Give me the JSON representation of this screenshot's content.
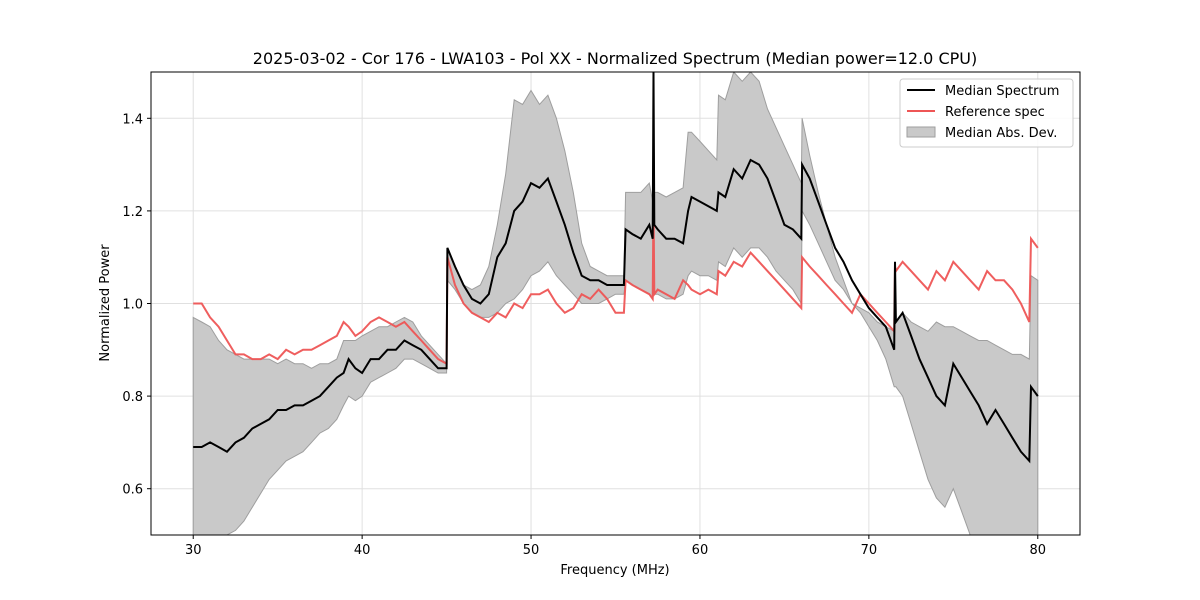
{
  "chart_data": {
    "type": "line",
    "title": "2025-03-02 - Cor 176 - LWA103 - Pol XX - Normalized Spectrum (Median power=12.0 CPU)",
    "xlabel": "Frequency (MHz)",
    "ylabel": "Normalized Power",
    "xlim": [
      27.5,
      82.5
    ],
    "ylim": [
      0.5,
      1.5
    ],
    "xticks": [
      30,
      40,
      50,
      60,
      70,
      80
    ],
    "yticks": [
      0.6,
      0.8,
      1.0,
      1.2,
      1.4
    ],
    "xtick_labels": [
      "30",
      "40",
      "50",
      "60",
      "70",
      "80"
    ],
    "ytick_labels": [
      "0.6",
      "0.8",
      "1.0",
      "1.2",
      "1.4"
    ],
    "grid": true,
    "legend_position": "top-right",
    "legend": [
      "Median Spectrum",
      "Reference spec",
      "Median Abs. Dev."
    ],
    "colors": {
      "median": "#000000",
      "reference": "#ee5555",
      "band_fill": "#c9c9c9",
      "band_edge": "#9e9e9e",
      "grid": "#e0e0e0"
    },
    "series": [
      {
        "name": "Median Spectrum",
        "x": [
          30,
          30.5,
          31,
          31.5,
          32,
          32.5,
          33,
          33.5,
          34,
          34.5,
          35,
          35.5,
          36,
          36.5,
          37,
          37.5,
          38,
          38.5,
          38.9,
          39.2,
          39.6,
          40,
          40.5,
          41,
          41.5,
          42,
          42.5,
          43,
          43.5,
          44,
          44.5,
          45,
          45.05,
          45.5,
          46,
          46.5,
          47,
          47.5,
          48,
          48.5,
          49,
          49.5,
          50,
          50.5,
          51,
          51.5,
          52,
          52.5,
          53,
          53.5,
          54,
          54.5,
          55,
          55.5,
          55.6,
          56,
          56.5,
          57,
          57.2,
          57.25,
          57.3,
          57.5,
          58,
          58.5,
          59,
          59.3,
          59.5,
          60,
          60.5,
          61,
          61.1,
          61.5,
          62,
          62.5,
          63,
          63.5,
          64,
          64.5,
          65,
          65.5,
          66,
          66.05,
          66.5,
          67,
          67.5,
          68,
          68.5,
          69,
          69.5,
          70,
          70.5,
          71,
          71.5,
          71.55,
          71.6,
          72,
          72.5,
          73,
          73.5,
          74,
          74.5,
          75,
          75.5,
          76,
          76.5,
          77,
          77.5,
          78,
          78.5,
          79,
          79.5,
          79.6,
          80
        ],
        "y": [
          0.69,
          0.69,
          0.7,
          0.69,
          0.68,
          0.7,
          0.71,
          0.73,
          0.74,
          0.75,
          0.77,
          0.77,
          0.78,
          0.78,
          0.79,
          0.8,
          0.82,
          0.84,
          0.85,
          0.88,
          0.86,
          0.85,
          0.88,
          0.88,
          0.9,
          0.9,
          0.92,
          0.91,
          0.9,
          0.88,
          0.86,
          0.86,
          1.12,
          1.08,
          1.04,
          1.01,
          1.0,
          1.02,
          1.1,
          1.13,
          1.2,
          1.22,
          1.26,
          1.25,
          1.27,
          1.22,
          1.17,
          1.11,
          1.06,
          1.05,
          1.05,
          1.04,
          1.04,
          1.04,
          1.16,
          1.15,
          1.14,
          1.17,
          1.14,
          1.5,
          1.17,
          1.16,
          1.14,
          1.14,
          1.13,
          1.2,
          1.23,
          1.22,
          1.21,
          1.2,
          1.24,
          1.23,
          1.29,
          1.27,
          1.31,
          1.3,
          1.27,
          1.22,
          1.17,
          1.16,
          1.14,
          1.3,
          1.27,
          1.22,
          1.17,
          1.12,
          1.09,
          1.05,
          1.02,
          0.99,
          0.97,
          0.95,
          0.9,
          1.09,
          0.96,
          0.98,
          0.93,
          0.88,
          0.84,
          0.8,
          0.78,
          0.87,
          0.84,
          0.81,
          0.78,
          0.74,
          0.77,
          0.74,
          0.71,
          0.68,
          0.66,
          0.82,
          0.8
        ]
      },
      {
        "name": "Reference spec",
        "x": [
          30,
          30.5,
          31,
          31.5,
          32,
          32.5,
          33,
          33.5,
          34,
          34.5,
          35,
          35.5,
          36,
          36.5,
          37,
          37.5,
          38,
          38.5,
          38.9,
          39.2,
          39.6,
          40,
          40.5,
          41,
          41.5,
          42,
          42.5,
          43,
          43.5,
          44,
          44.5,
          45,
          45.05,
          45.5,
          46,
          46.5,
          47,
          47.5,
          48,
          48.5,
          49,
          49.5,
          50,
          50.5,
          51,
          51.5,
          52,
          52.5,
          53,
          53.5,
          54,
          54.5,
          55,
          55.5,
          55.6,
          56,
          56.5,
          57,
          57.2,
          57.25,
          57.3,
          57.5,
          58,
          58.5,
          59,
          59.3,
          59.5,
          60,
          60.5,
          61,
          61.1,
          61.5,
          62,
          62.5,
          63,
          63.5,
          64,
          64.5,
          65,
          65.5,
          66,
          66.05,
          66.5,
          67,
          67.5,
          68,
          68.5,
          69,
          69.5,
          70,
          70.5,
          71,
          71.5,
          71.55,
          71.6,
          72,
          72.5,
          73,
          73.5,
          74,
          74.5,
          75,
          75.5,
          76,
          76.5,
          77,
          77.5,
          78,
          78.5,
          79,
          79.5,
          79.6,
          80
        ],
        "y": [
          1.0,
          1.0,
          0.97,
          0.95,
          0.92,
          0.89,
          0.89,
          0.88,
          0.88,
          0.89,
          0.88,
          0.9,
          0.89,
          0.9,
          0.9,
          0.91,
          0.92,
          0.93,
          0.96,
          0.95,
          0.93,
          0.94,
          0.96,
          0.97,
          0.96,
          0.95,
          0.96,
          0.94,
          0.92,
          0.9,
          0.88,
          0.87,
          1.1,
          1.04,
          1.0,
          0.98,
          0.97,
          0.96,
          0.98,
          0.97,
          1.0,
          0.99,
          1.02,
          1.02,
          1.03,
          1.0,
          0.98,
          0.99,
          1.02,
          1.01,
          1.03,
          1.01,
          0.98,
          0.98,
          1.05,
          1.04,
          1.03,
          1.02,
          1.01,
          1.22,
          1.02,
          1.03,
          1.02,
          1.01,
          1.05,
          1.04,
          1.03,
          1.02,
          1.03,
          1.02,
          1.07,
          1.06,
          1.09,
          1.08,
          1.11,
          1.09,
          1.07,
          1.05,
          1.03,
          1.01,
          0.99,
          1.1,
          1.08,
          1.06,
          1.04,
          1.02,
          1.0,
          0.98,
          1.02,
          1.0,
          0.98,
          0.96,
          0.94,
          1.08,
          1.07,
          1.09,
          1.07,
          1.05,
          1.03,
          1.07,
          1.05,
          1.09,
          1.07,
          1.05,
          1.03,
          1.07,
          1.05,
          1.05,
          1.03,
          1.0,
          0.96,
          1.14,
          1.12
        ]
      }
    ],
    "band": {
      "name": "Median Abs. Dev.",
      "x": [
        30,
        30.5,
        31,
        31.5,
        32,
        32.5,
        33,
        33.5,
        34,
        34.5,
        35,
        35.5,
        36,
        36.5,
        37,
        37.5,
        38,
        38.5,
        38.9,
        39.2,
        39.6,
        40,
        40.5,
        41,
        41.5,
        42,
        42.5,
        43,
        43.5,
        44,
        44.5,
        45,
        45.05,
        45.5,
        46,
        46.5,
        47,
        47.5,
        48,
        48.5,
        49,
        49.5,
        50,
        50.5,
        51,
        51.5,
        52,
        52.5,
        53,
        53.5,
        54,
        54.5,
        55,
        55.5,
        55.6,
        56,
        56.5,
        57,
        57.2,
        57.25,
        57.3,
        57.5,
        58,
        58.5,
        59,
        59.3,
        59.5,
        60,
        60.5,
        61,
        61.1,
        61.5,
        62,
        62.5,
        63,
        63.5,
        64,
        64.5,
        65,
        65.5,
        66,
        66.05,
        66.5,
        67,
        67.5,
        68,
        68.5,
        69,
        69.5,
        70,
        70.5,
        71,
        71.5,
        71.55,
        71.6,
        72,
        72.5,
        73,
        73.5,
        74,
        74.5,
        75,
        75.5,
        76,
        76.5,
        77,
        77.5,
        78,
        78.5,
        79,
        79.5,
        79.6,
        80
      ],
      "upper": [
        0.97,
        0.96,
        0.95,
        0.92,
        0.9,
        0.89,
        0.88,
        0.88,
        0.88,
        0.88,
        0.87,
        0.88,
        0.87,
        0.87,
        0.86,
        0.87,
        0.87,
        0.88,
        0.92,
        0.92,
        0.92,
        0.93,
        0.94,
        0.95,
        0.95,
        0.96,
        0.97,
        0.96,
        0.93,
        0.91,
        0.89,
        0.87,
        1.12,
        1.08,
        1.04,
        1.03,
        1.04,
        1.08,
        1.17,
        1.28,
        1.44,
        1.43,
        1.46,
        1.43,
        1.45,
        1.4,
        1.33,
        1.24,
        1.13,
        1.08,
        1.07,
        1.06,
        1.06,
        1.06,
        1.24,
        1.24,
        1.24,
        1.26,
        1.22,
        1.5,
        1.24,
        1.24,
        1.23,
        1.24,
        1.25,
        1.37,
        1.37,
        1.35,
        1.33,
        1.31,
        1.45,
        1.44,
        1.5,
        1.48,
        1.5,
        1.48,
        1.42,
        1.38,
        1.34,
        1.3,
        1.26,
        1.4,
        1.32,
        1.24,
        1.17,
        1.1,
        1.05,
        1.0,
        0.99,
        0.98,
        0.96,
        0.95,
        0.94,
        0.96,
        0.96,
        0.98,
        0.96,
        0.95,
        0.94,
        0.96,
        0.95,
        0.95,
        0.94,
        0.93,
        0.92,
        0.92,
        0.91,
        0.9,
        0.89,
        0.89,
        0.88,
        1.06,
        1.05
      ],
      "lower": [
        0.5,
        0.5,
        0.5,
        0.5,
        0.5,
        0.51,
        0.53,
        0.56,
        0.59,
        0.62,
        0.64,
        0.66,
        0.67,
        0.68,
        0.7,
        0.72,
        0.73,
        0.75,
        0.78,
        0.8,
        0.79,
        0.8,
        0.83,
        0.84,
        0.85,
        0.86,
        0.88,
        0.88,
        0.87,
        0.86,
        0.85,
        0.85,
        1.05,
        1.03,
        1.0,
        0.98,
        0.97,
        0.97,
        0.98,
        1.0,
        1.01,
        1.03,
        1.06,
        1.07,
        1.09,
        1.06,
        1.04,
        1.02,
        1.0,
        1.0,
        1.0,
        1.01,
        1.02,
        1.02,
        1.05,
        1.04,
        1.03,
        1.02,
        1.01,
        1.04,
        1.02,
        1.02,
        1.01,
        1.01,
        1.02,
        1.06,
        1.07,
        1.06,
        1.06,
        1.05,
        1.09,
        1.08,
        1.12,
        1.1,
        1.12,
        1.12,
        1.1,
        1.07,
        1.05,
        1.03,
        1.0,
        1.2,
        1.17,
        1.13,
        1.09,
        1.05,
        1.03,
        1.0,
        0.98,
        0.95,
        0.92,
        0.88,
        0.82,
        0.82,
        0.82,
        0.8,
        0.74,
        0.68,
        0.62,
        0.58,
        0.56,
        0.6,
        0.55,
        0.5,
        0.5,
        0.5,
        0.5,
        0.5,
        0.5,
        0.5,
        0.5,
        0.5,
        0.5
      ]
    }
  }
}
